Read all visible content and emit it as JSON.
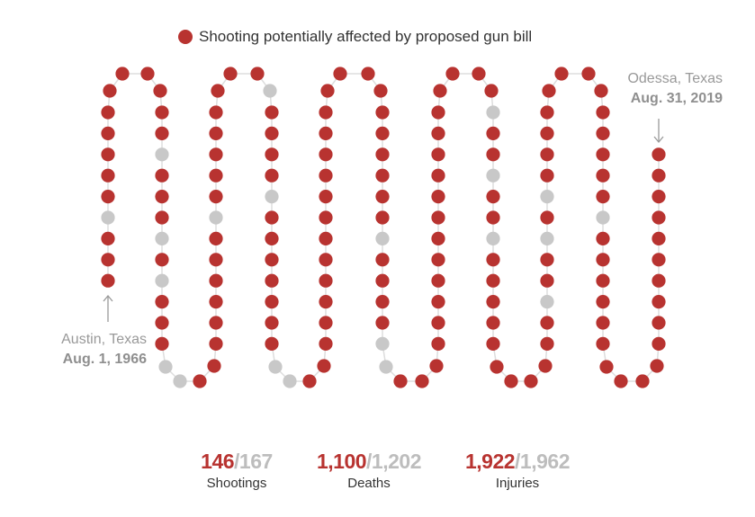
{
  "legend": {
    "label": "Shooting potentially affected by proposed gun bill"
  },
  "colors": {
    "affected": "#b83330",
    "not_affected": "#c8c8c8",
    "connector": "#dddddd",
    "annotation": "#999999"
  },
  "annotations": {
    "start": {
      "place": "Austin, Texas",
      "date": "Aug. 1, 1966"
    },
    "end": {
      "place": "Odessa, Texas",
      "date": "Aug. 31, 2019"
    }
  },
  "stats": [
    {
      "affected": "146",
      "total": "/167",
      "label": "Shootings"
    },
    {
      "affected": "1,100",
      "total": "/1,202",
      "label": "Deaths"
    },
    {
      "affected": "1,922",
      "total": "/1,962",
      "label": "Injuries"
    }
  ],
  "chart_data": {
    "type": "scatter",
    "layout": "serpentine timeline, chronological",
    "total_shootings": 167,
    "affected_shootings": 146,
    "not_affected_positions": [
      4,
      16,
      20,
      22,
      26,
      27,
      36,
      45,
      50,
      58,
      59,
      84,
      89,
      90,
      110,
      113,
      116,
      128,
      131,
      133,
      147
    ],
    "first": "Austin, Texas — Aug. 1, 1966",
    "last": "Odessa, Texas — Aug. 31, 2019"
  }
}
